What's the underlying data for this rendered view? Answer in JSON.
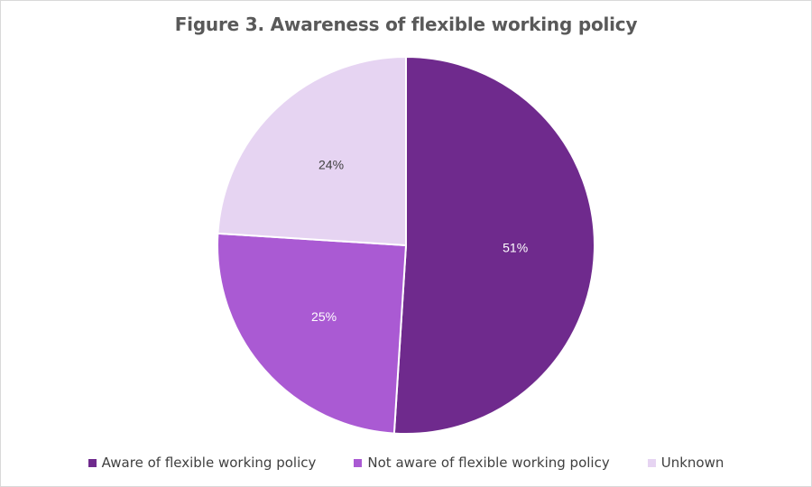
{
  "chart_data": {
    "type": "pie",
    "title": "Figure 3. Awareness of flexible working policy",
    "categories": [
      "Aware of flexible working policy",
      "Not aware of flexible working policy",
      "Unknown"
    ],
    "values": [
      51,
      25,
      24
    ],
    "labels": [
      "51%",
      "25%",
      "24%"
    ],
    "colors": [
      "#6f2a8d",
      "#aa5ad3",
      "#e6d4f2"
    ],
    "label_colors": [
      "#ffffff",
      "#ffffff",
      "#404040"
    ],
    "start_angle_deg": 0,
    "direction": "clockwise",
    "legend_position": "bottom"
  }
}
